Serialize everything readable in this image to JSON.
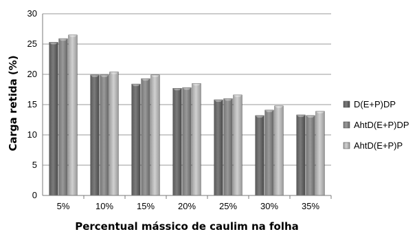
{
  "chart_data": {
    "type": "bar",
    "title": "",
    "xlabel": "Percentual mássico de caulim na folha",
    "ylabel": "Carga retida (%)",
    "ylim": [
      0,
      30
    ],
    "yticks": [
      "0",
      "5",
      "10",
      "15",
      "20",
      "25",
      "30"
    ],
    "categories": [
      "5%",
      "10%",
      "15%",
      "20%",
      "25%",
      "30%",
      "35%"
    ],
    "grid": "horizontal",
    "legend": "right",
    "series": [
      {
        "name": "D(E+P)DP",
        "values": [
          25.3,
          19.9,
          18.4,
          17.7,
          15.8,
          13.2,
          13.3
        ],
        "color": "#6e6e6e"
      },
      {
        "name": "AhtD(E+P)DP",
        "values": [
          25.9,
          19.9,
          19.3,
          17.8,
          16.0,
          14.1,
          13.2
        ],
        "color": "#8f8f8f"
      },
      {
        "name": "AhtD(E+P)P",
        "values": [
          26.5,
          20.4,
          19.9,
          18.5,
          16.6,
          14.8,
          13.9
        ],
        "color": "#b8b8b8"
      }
    ]
  }
}
